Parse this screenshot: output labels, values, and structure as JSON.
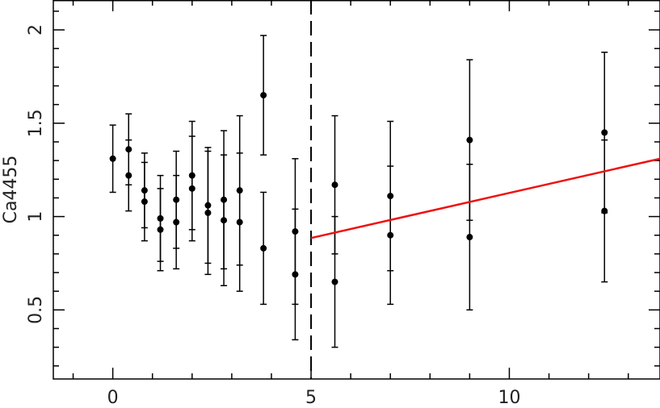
{
  "chart_data": {
    "type": "scatter",
    "ylabel": "Ca4455",
    "xlim": [
      -1.5,
      13.8
    ],
    "ylim": [
      0.13,
      2.16
    ],
    "xticks": [
      0,
      5,
      10
    ],
    "xminorticks": [
      -1,
      1,
      2,
      3,
      4,
      6,
      7,
      8,
      9,
      11,
      12,
      13
    ],
    "yticks": [
      0.5,
      1,
      1.5,
      2
    ],
    "yminorticks": [
      0.2,
      0.3,
      0.4,
      0.6,
      0.7,
      0.8,
      0.9,
      1.1,
      1.2,
      1.3,
      1.4,
      1.6,
      1.7,
      1.8,
      1.9,
      2.1
    ],
    "vline": 5,
    "series": [
      {
        "color": "#000000",
        "x": [
          0,
          0.4,
          0.8,
          1.2,
          1.6,
          2.0,
          2.4,
          2.8,
          3.2,
          3.8,
          4.6,
          5.6,
          7.0,
          9.0,
          12.4
        ],
        "values": [
          1.31,
          1.36,
          1.14,
          0.99,
          1.09,
          1.22,
          1.06,
          1.09,
          1.14,
          1.65,
          0.92,
          1.17,
          1.11,
          1.41,
          1.45
        ],
        "errors": [
          0.18,
          0.19,
          0.2,
          0.23,
          0.26,
          0.29,
          0.31,
          0.37,
          0.4,
          0.32,
          0.39,
          0.37,
          0.4,
          0.43,
          0.43
        ]
      },
      {
        "color": "#000000",
        "x": [
          0.4,
          0.8,
          1.2,
          1.6,
          2.0,
          2.4,
          2.8,
          3.2,
          3.8,
          4.6,
          5.6,
          7.0,
          9.0,
          12.4
        ],
        "values": [
          1.22,
          1.08,
          0.93,
          0.97,
          1.15,
          1.02,
          0.98,
          0.97,
          0.83,
          0.69,
          0.65,
          0.9,
          0.89,
          1.03
        ],
        "errors": [
          0.19,
          0.21,
          0.22,
          0.25,
          0.28,
          0.33,
          0.35,
          0.37,
          0.3,
          0.35,
          0.35,
          0.37,
          0.39,
          0.38
        ]
      }
    ],
    "fit": {
      "color": "#ee1111",
      "x": [
        5,
        13.8
      ],
      "values": [
        0.885,
        1.31
      ]
    }
  }
}
